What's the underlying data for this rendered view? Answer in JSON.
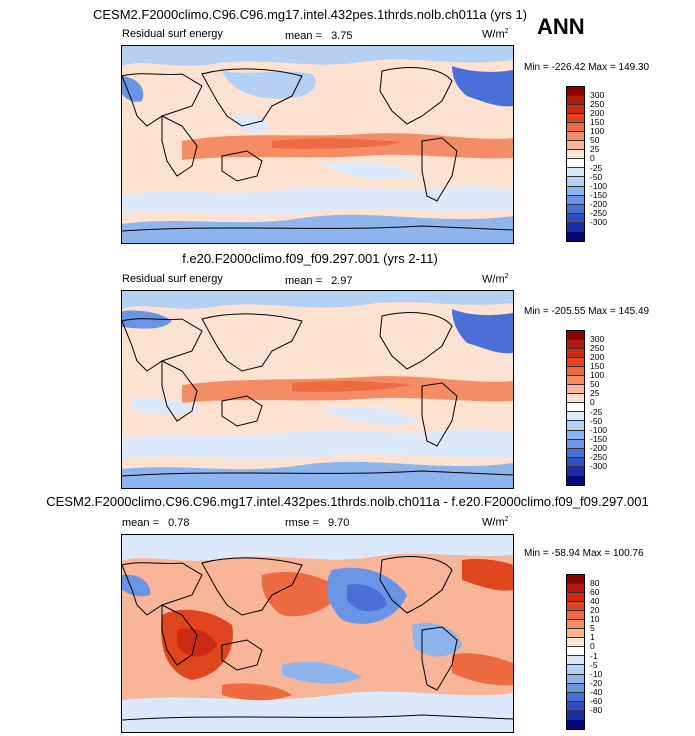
{
  "season": "ANN",
  "panels": [
    {
      "title": "CESM2.F2000climo.C96.C96.mg17.intel.432pes.1thrds.nolb.ch011a (yrs 1)",
      "left_label": "Residual surf energy",
      "stat_label": "mean =",
      "stat_value": "3.75",
      "units_base": "W/m",
      "units_exp": "2",
      "min_label": "Min =",
      "min_value": "-226.42",
      "max_label": "Max =",
      "max_value": "149.30"
    },
    {
      "title": "f.e20.F2000climo.f09_f09.297.001 (yrs 2-11)",
      "left_label": "Residual surf energy",
      "stat_label": "mean =",
      "stat_value": "2.97",
      "units_base": "W/m",
      "units_exp": "2",
      "min_label": "Min =",
      "min_value": "-205.55",
      "max_label": "Max =",
      "max_value": "145.49"
    },
    {
      "title": "CESM2.F2000climo.C96.C96.mg17.intel.432pes.1thrds.nolb.ch011a - f.e20.F2000climo.f09_f09.297.001",
      "stat_label": "mean =",
      "stat_value": "0.78",
      "rmse_label": "rmse =",
      "rmse_value": "9.70",
      "units_base": "W/m",
      "units_exp": "2",
      "min_label": "Min =",
      "min_value": "-58.94",
      "max_label": "Max =",
      "max_value": "100.76"
    }
  ],
  "colorbar_model": {
    "labels": [
      "300",
      "250",
      "200",
      "150",
      "100",
      "50",
      "25",
      "0",
      "-25",
      "-50",
      "-100",
      "-150",
      "-200",
      "-250",
      "-300"
    ],
    "colors": [
      "#8b0000",
      "#b01810",
      "#cc2a12",
      "#e0461e",
      "#ee6a40",
      "#f48c66",
      "#f9b598",
      "#fde2d2",
      "#ffffff",
      "#dbe9fb",
      "#b4d0f3",
      "#8db4ec",
      "#6a94e4",
      "#4a70d8",
      "#2e4ec8",
      "#1a2aa8",
      "#06067a"
    ]
  },
  "colorbar_diff": {
    "labels": [
      "80",
      "60",
      "40",
      "20",
      "10",
      "5",
      "1",
      "0",
      "-1",
      "-5",
      "-10",
      "-20",
      "-40",
      "-60",
      "-80"
    ],
    "colors": [
      "#8b0000",
      "#b01810",
      "#cc2a12",
      "#e0461e",
      "#ee6a40",
      "#f48c66",
      "#f9b598",
      "#fde2d2",
      "#ffffff",
      "#dbe9fb",
      "#b4d0f3",
      "#8db4ec",
      "#6a94e4",
      "#4a70d8",
      "#2e4ec8",
      "#1a2aa8",
      "#06067a"
    ]
  },
  "chart_data": [
    {
      "type": "heatmap",
      "title": "CESM2.F2000climo.C96.C96.mg17.intel.432pes.1thrds.nolb.ch011a (yrs 1)",
      "variable": "Residual surf energy",
      "units": "W/m2",
      "mean": 3.75,
      "min": -226.42,
      "max": 149.3,
      "levels": [
        -300,
        -250,
        -200,
        -150,
        -100,
        -50,
        -25,
        0,
        25,
        50,
        100,
        150,
        200,
        250,
        300
      ]
    },
    {
      "type": "heatmap",
      "title": "f.e20.F2000climo.f09_f09.297.001 (yrs 2-11)",
      "variable": "Residual surf energy",
      "units": "W/m2",
      "mean": 2.97,
      "min": -205.55,
      "max": 145.49,
      "levels": [
        -300,
        -250,
        -200,
        -150,
        -100,
        -50,
        -25,
        0,
        25,
        50,
        100,
        150,
        200,
        250,
        300
      ]
    },
    {
      "type": "heatmap",
      "title": "CESM2.F2000climo.C96.C96.mg17.intel.432pes.1thrds.nolb.ch011a - f.e20.F2000climo.f09_f09.297.001",
      "units": "W/m2",
      "mean": 0.78,
      "rmse": 9.7,
      "min": -58.94,
      "max": 100.76,
      "levels": [
        -80,
        -60,
        -40,
        -20,
        -10,
        -5,
        -1,
        0,
        1,
        5,
        10,
        20,
        40,
        60,
        80
      ]
    }
  ]
}
